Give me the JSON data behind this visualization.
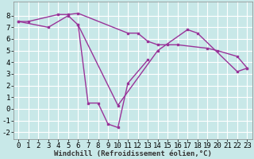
{
  "background_color": "#c8e8e8",
  "line_color": "#993399",
  "grid_color": "#ffffff",
  "xlabel": "Windchill (Refroidissement éolien,°C)",
  "xlabel_fontsize": 6.5,
  "tick_fontsize": 6.5,
  "ytick_fontsize": 6.5,
  "ylim": [
    -2.6,
    9.2
  ],
  "xlim": [
    -0.5,
    23.5
  ],
  "yticks": [
    -2,
    -1,
    0,
    1,
    2,
    3,
    4,
    5,
    6,
    7,
    8
  ],
  "xticks": [
    0,
    1,
    2,
    3,
    4,
    5,
    6,
    7,
    8,
    9,
    10,
    11,
    12,
    13,
    14,
    15,
    16,
    17,
    18,
    19,
    20,
    21,
    22,
    23
  ],
  "line1_x": [
    0,
    1,
    4,
    5,
    6,
    11,
    12,
    13,
    14,
    15,
    16,
    19,
    20,
    22,
    23
  ],
  "line1_y": [
    7.5,
    7.5,
    8.1,
    8.1,
    8.2,
    6.5,
    6.5,
    5.8,
    5.5,
    5.5,
    5.5,
    5.2,
    5.0,
    4.5,
    3.5
  ],
  "line2_x": [
    0,
    3,
    5,
    6,
    10,
    14,
    17,
    18,
    22,
    23
  ],
  "line2_y": [
    7.5,
    7.0,
    8.0,
    7.2,
    0.3,
    5.0,
    6.8,
    6.5,
    3.2,
    3.5
  ],
  "line3_x": [
    6,
    7,
    8,
    9,
    10,
    11,
    13
  ],
  "line3_y": [
    7.2,
    0.5,
    0.5,
    -1.3,
    -1.6,
    2.2,
    4.2
  ]
}
